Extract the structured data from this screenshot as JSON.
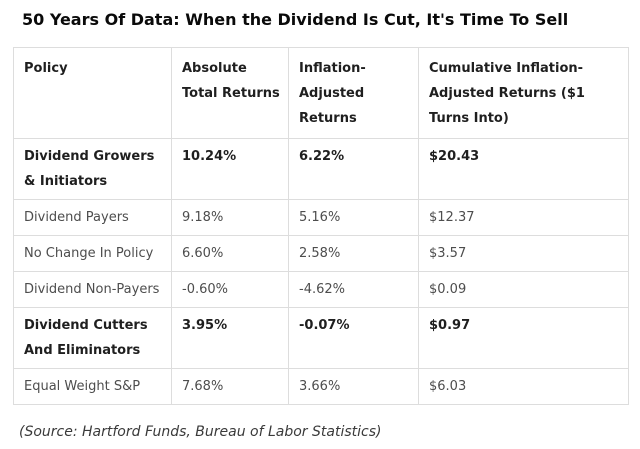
{
  "title": "50 Years Of Data: When the Dividend Is Cut, It's Time To Sell",
  "table": {
    "headers": {
      "policy": "Policy",
      "absolute": "Absolute\nTotal Returns",
      "inflation": "Inflation-\nAdjusted\nReturns",
      "cumulative": "Cumulative Inflation-\nAdjusted Returns ($1\nTurns Into)"
    }
  },
  "chart_data": {
    "type": "table",
    "title": "50 Years Of Data: When the Dividend Is Cut, It's Time To Sell",
    "columns": [
      "Policy",
      "Absolute Total Returns",
      "Inflation-Adjusted Returns",
      "Cumulative Inflation-Adjusted Returns ($1 Turns Into)"
    ],
    "rows": [
      {
        "policy": "Dividend Growers & Initiators",
        "absolute_total_returns": "10.24%",
        "inflation_adjusted_returns": "6.22%",
        "cumulative_1_dollar_turns_into": "$20.43",
        "emphasized": true
      },
      {
        "policy": "Dividend Payers",
        "absolute_total_returns": "9.18%",
        "inflation_adjusted_returns": "5.16%",
        "cumulative_1_dollar_turns_into": "$12.37",
        "emphasized": false
      },
      {
        "policy": "No Change In Policy",
        "absolute_total_returns": "6.60%",
        "inflation_adjusted_returns": "2.58%",
        "cumulative_1_dollar_turns_into": "$3.57",
        "emphasized": false
      },
      {
        "policy": "Dividend Non-Payers",
        "absolute_total_returns": "-0.60%",
        "inflation_adjusted_returns": "-4.62%",
        "cumulative_1_dollar_turns_into": "$0.09",
        "emphasized": false
      },
      {
        "policy": "Dividend Cutters And Eliminators",
        "absolute_total_returns": "3.95%",
        "inflation_adjusted_returns": "-0.07%",
        "cumulative_1_dollar_turns_into": "$0.97",
        "emphasized": true
      },
      {
        "policy": "Equal Weight S&P",
        "absolute_total_returns": "7.68%",
        "inflation_adjusted_returns": "3.66%",
        "cumulative_1_dollar_turns_into": "$6.03",
        "emphasized": false
      }
    ],
    "source": "(Source: Hartford Funds, Bureau of Labor Statistics)"
  },
  "colors": {
    "background": "#ffffff",
    "border": "#dddddd",
    "text_regular": "#4d4d4d",
    "text_emphasized": "#1f1f1f",
    "title_text": "#0a0a0a"
  }
}
